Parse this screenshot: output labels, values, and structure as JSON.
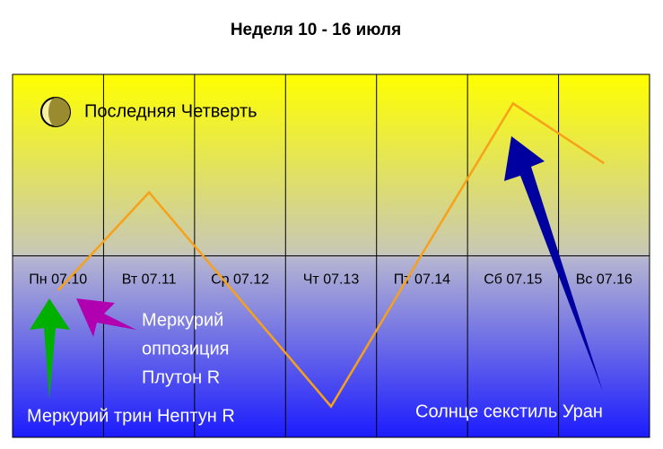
{
  "chart_data": {
    "type": "line",
    "title": "Неделя 10 - 16 июля",
    "categories": [
      "Пн 07.10",
      "Вт 07.11",
      "Ср 07.12",
      "Чт 07.13",
      "Пт 07.14",
      "Сб 07.15",
      "Вс 07.16"
    ],
    "values": [
      -19,
      35,
      -24,
      -83,
      1,
      84,
      51
    ],
    "color": "#f7a11a",
    "ylim": [
      -100,
      100
    ],
    "annotations": [
      "Последняя Четверть",
      [
        "Меркурий",
        "оппозиция",
        "Плутон R"
      ],
      "Меркурий трин Нептун R",
      "Солнце секстиль Уран"
    ]
  }
}
